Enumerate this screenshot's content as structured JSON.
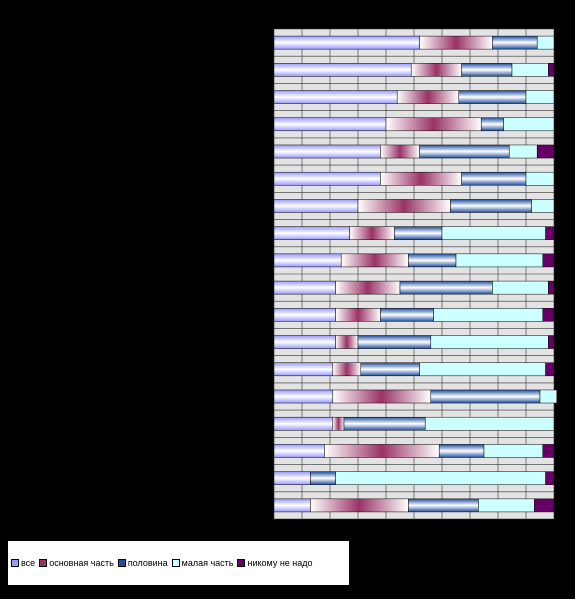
{
  "chart_data": {
    "type": "bar",
    "stacked": "percent",
    "orientation": "horizontal",
    "title": "",
    "xlabel": "",
    "ylabel": "",
    "xlim": [
      0,
      100
    ],
    "grid": true,
    "legend_position": "bottom-left",
    "categories": [
      "",
      "",
      "",
      "",
      "",
      "",
      "",
      "",
      "",
      "",
      "",
      "",
      "",
      "",
      "",
      "",
      "",
      ""
    ],
    "series": [
      {
        "name": "все",
        "color": "#9999ff",
        "values": [
          52,
          49,
          44,
          40,
          38,
          38,
          30,
          27,
          24,
          22,
          22,
          22,
          21,
          21,
          21,
          18,
          13,
          13
        ]
      },
      {
        "name": "основная часть",
        "color": "#993366",
        "values": [
          26,
          18,
          22,
          34,
          14,
          29,
          33,
          16,
          24,
          23,
          16,
          8,
          10,
          35,
          4,
          41,
          0,
          35
        ]
      },
      {
        "name": "половина",
        "color": "#1f4fa0",
        "values": [
          16,
          18,
          24,
          8,
          32,
          23,
          29,
          17,
          17,
          33,
          19,
          26,
          21,
          39,
          29,
          16,
          9,
          25
        ]
      },
      {
        "name": "малая часть",
        "color": "#ccffff",
        "values": [
          6,
          13,
          10,
          18,
          10,
          10,
          8,
          37,
          31,
          20,
          39,
          42,
          45,
          6,
          46,
          21,
          75,
          20
        ]
      },
      {
        "name": "никому не надо",
        "color": "#660066",
        "values": [
          0,
          2,
          0,
          0,
          6,
          0,
          0,
          3,
          4,
          2,
          4,
          2,
          3,
          0,
          0,
          4,
          3,
          7
        ]
      }
    ]
  },
  "colors": {
    "plot_background": "#e3e3e3",
    "gridline": "#333333",
    "page_background": "#000000"
  }
}
